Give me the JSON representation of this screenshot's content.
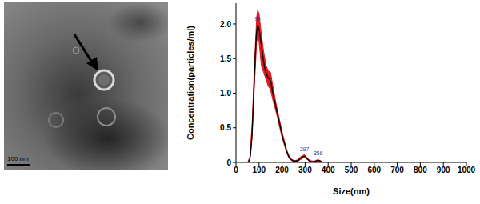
{
  "image": {
    "scale_bar": "100 nm"
  },
  "chart_data": {
    "type": "line",
    "x_label": "Size(nm)",
    "y_label": "Concentration(particles/ml)",
    "x": [
      0,
      50,
      60,
      70,
      80,
      90,
      94,
      100,
      110,
      120,
      130,
      140,
      150,
      160,
      170,
      180,
      190,
      200,
      210,
      220,
      230,
      240,
      250,
      260,
      270,
      280,
      290,
      297,
      310,
      320,
      330,
      340,
      356,
      370,
      380,
      400,
      1000
    ],
    "series": [
      {
        "type": "line",
        "color": "#000000",
        "values": [
          0,
          0,
          0.05,
          0.45,
          1.25,
          1.9,
          1.98,
          1.92,
          1.7,
          1.45,
          1.3,
          1.22,
          1.18,
          1.0,
          0.85,
          0.7,
          0.55,
          0.4,
          0.28,
          0.16,
          0.08,
          0.04,
          0.02,
          0.02,
          0.03,
          0.06,
          0.08,
          0.09,
          0.05,
          0.02,
          0.01,
          0.01,
          0.03,
          0.01,
          0,
          0,
          0
        ]
      },
      {
        "type": "area",
        "color": "#e0191e",
        "lower": [
          0,
          0,
          0.03,
          0.35,
          1.1,
          1.75,
          1.8,
          1.75,
          1.4,
          1.3,
          1.2,
          1.1,
          1.05,
          0.9,
          0.78,
          0.65,
          0.5,
          0.36,
          0.25,
          0.14,
          0.06,
          0.03,
          0.01,
          0.01,
          0.02,
          0.04,
          0.06,
          0.07,
          0.04,
          0.01,
          0,
          0,
          0.02,
          0,
          0,
          0,
          0
        ],
        "upper": [
          0,
          0,
          0.07,
          0.55,
          1.4,
          2.1,
          2.2,
          2.15,
          1.85,
          1.6,
          1.4,
          1.32,
          1.3,
          1.1,
          0.92,
          0.75,
          0.6,
          0.44,
          0.31,
          0.18,
          0.1,
          0.05,
          0.03,
          0.03,
          0.04,
          0.08,
          0.1,
          0.11,
          0.06,
          0.03,
          0.02,
          0.02,
          0.04,
          0.02,
          0,
          0,
          0
        ]
      }
    ],
    "annotations": [
      {
        "x": 94,
        "y": 1.98,
        "text": "94"
      },
      {
        "x": 297,
        "y": 0.09,
        "text": "297"
      },
      {
        "x": 356,
        "y": 0.03,
        "text": "356"
      }
    ],
    "xlim": [
      0,
      1000
    ],
    "xticks": [
      0,
      100,
      200,
      300,
      400,
      500,
      600,
      700,
      800,
      900,
      1000
    ],
    "ylim": [
      0,
      2.3
    ],
    "yticks": [
      0,
      0.5,
      {
        "value": 1,
        "label": "1.0"
      },
      1.5,
      {
        "value": 2,
        "label": "2.0"
      }
    ]
  }
}
